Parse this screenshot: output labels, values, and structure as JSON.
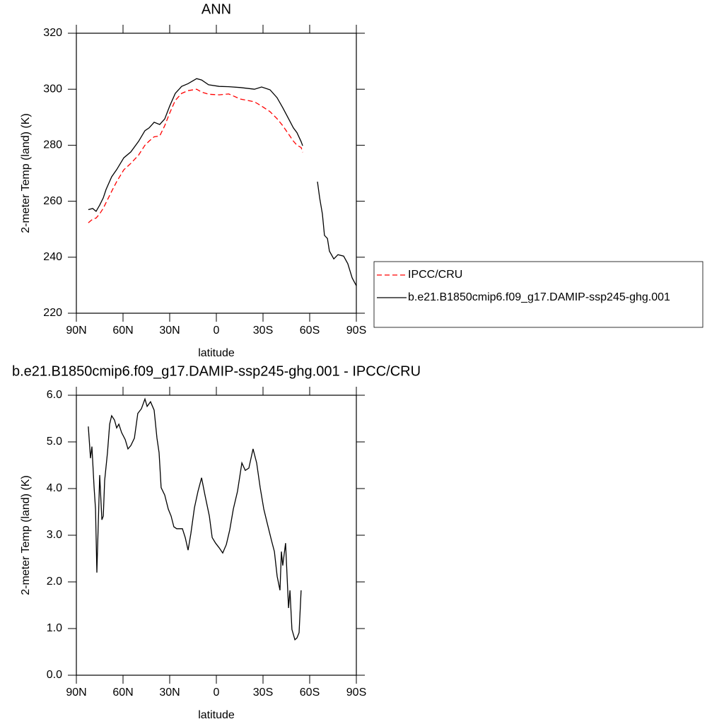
{
  "chart_data": [
    {
      "type": "line",
      "title": "ANN",
      "xlabel": "latitude",
      "ylabel": "2-meter Temp (land) (K)",
      "x": [
        82.3,
        79.5,
        77.3,
        75.0,
        72.7,
        70.9,
        67.3,
        64.1,
        59.5,
        55.0,
        50.0,
        45.9,
        43.2,
        40.0,
        36.4,
        33.2,
        30.0,
        26.4,
        22.3,
        18.2,
        12.7,
        9.5,
        5.0,
        -1.8,
        -8.0,
        -15.5,
        -24.5,
        -29.1,
        -34.5,
        -39.0,
        -42.7,
        -46.4,
        -49.5,
        -51.8,
        -54.5,
        -55.5,
        -60.0,
        -65.0,
        -66.4,
        -68.2,
        -69.5,
        -71.4,
        -72.7,
        -75.5,
        -78.2,
        -81.8,
        -84.5,
        -87.3,
        -90.0
      ],
      "series": [
        {
          "name": "IPCC/CRU",
          "color": "#ff0000",
          "line_style": "dashed",
          "values": [
            252.3,
            253.6,
            254.0,
            255.5,
            257.5,
            259.5,
            263.5,
            267.0,
            271.2,
            273.5,
            276.5,
            280.0,
            281.5,
            283.0,
            283.3,
            287.0,
            291.5,
            296.0,
            298.5,
            299.5,
            300.0,
            299.0,
            298.2,
            298.0,
            298.3,
            296.5,
            295.5,
            294.0,
            292.0,
            289.5,
            287.0,
            284.0,
            281.5,
            280.0,
            279.2,
            277.5,
            null,
            null,
            null,
            null,
            null,
            null,
            null,
            null,
            null,
            null,
            null,
            null,
            null
          ]
        },
        {
          "name": "b.e21.B1850cmip6.f09_g17.DAMIP-ssp245-ghg.001",
          "color": "#000000",
          "line_style": "solid",
          "values": [
            257.0,
            257.4,
            256.4,
            258.6,
            261.2,
            264.2,
            268.7,
            271.3,
            275.5,
            277.6,
            281.4,
            285.2,
            286.2,
            288.2,
            287.4,
            289.4,
            294.0,
            298.5,
            301.0,
            302.0,
            303.8,
            303.3,
            301.6,
            301.0,
            300.9,
            300.6,
            300.0,
            300.8,
            299.8,
            297.0,
            293.4,
            289.5,
            286.2,
            284.5,
            281.3,
            279.8,
            null,
            267.0,
            261.2,
            255.4,
            247.8,
            246.7,
            242.2,
            239.4,
            240.9,
            240.4,
            237.7,
            232.6,
            229.8
          ]
        }
      ],
      "xlim": [
        90,
        -90
      ],
      "xticks": [
        {
          "value": 90,
          "label": "90N"
        },
        {
          "value": 60,
          "label": "60N"
        },
        {
          "value": 30,
          "label": "30N"
        },
        0,
        {
          "value": -30,
          "label": "30S"
        },
        {
          "value": -60,
          "label": "60S"
        },
        {
          "value": -90,
          "label": "90S"
        }
      ],
      "ylim": [
        220,
        320
      ],
      "yticks": [
        220,
        240,
        260,
        280,
        300,
        320
      ],
      "legend": "right"
    },
    {
      "type": "line",
      "title": "b.e21.B1850cmip6.f09_g17.DAMIP-ssp245-ghg.001 - IPCC/CRU",
      "xlabel": "latitude",
      "ylabel": "2-meter Temp (land) (K)",
      "x": [
        82.3,
        80.9,
        80.0,
        78.6,
        77.7,
        76.8,
        75.0,
        73.6,
        72.7,
        71.8,
        70.0,
        68.6,
        67.3,
        65.5,
        64.1,
        62.7,
        60.9,
        58.6,
        56.8,
        55.0,
        52.7,
        50.5,
        48.2,
        45.9,
        44.5,
        42.3,
        40.0,
        38.2,
        36.8,
        35.5,
        33.2,
        30.9,
        29.1,
        27.3,
        25.5,
        21.8,
        20.0,
        18.2,
        16.4,
        14.1,
        11.8,
        9.5,
        7.3,
        4.5,
        2.7,
        0.5,
        -1.8,
        -4.1,
        -6.4,
        -8.6,
        -10.9,
        -13.6,
        -16.4,
        -18.6,
        -20.9,
        -23.6,
        -25.9,
        -28.2,
        -30.5,
        -32.7,
        -35.5,
        -37.3,
        -39.1,
        -40.9,
        -41.8,
        -42.7,
        -44.5,
        -46.4,
        -47.3,
        -48.6,
        -50.5,
        -51.8,
        -53.2,
        -54.5
      ],
      "values": [
        5.33,
        4.65,
        4.9,
        4.02,
        3.56,
        2.2,
        4.29,
        3.33,
        3.41,
        4.17,
        4.77,
        5.38,
        5.56,
        5.47,
        5.3,
        5.38,
        5.2,
        5.05,
        4.85,
        4.92,
        5.08,
        5.61,
        5.71,
        5.92,
        5.76,
        5.86,
        5.68,
        5.08,
        4.77,
        4.02,
        3.86,
        3.56,
        3.41,
        3.18,
        3.14,
        3.14,
        2.95,
        2.68,
        3.03,
        3.59,
        3.94,
        4.23,
        3.86,
        3.41,
        2.95,
        2.83,
        2.73,
        2.62,
        2.8,
        3.11,
        3.56,
        3.94,
        4.55,
        4.39,
        4.44,
        4.85,
        4.55,
        4.02,
        3.56,
        3.26,
        2.88,
        2.65,
        2.12,
        1.82,
        2.65,
        2.35,
        2.83,
        1.44,
        1.82,
        0.98,
        0.76,
        0.8,
        0.91,
        1.82
      ],
      "color": "#000000",
      "xlim": [
        90,
        -90
      ],
      "xticks": [
        {
          "value": 90,
          "label": "90N"
        },
        {
          "value": 60,
          "label": "60N"
        },
        {
          "value": 30,
          "label": "30N"
        },
        0,
        {
          "value": -30,
          "label": "30S"
        },
        {
          "value": -60,
          "label": "60S"
        },
        {
          "value": -90,
          "label": "90S"
        }
      ],
      "ylim": [
        0,
        6
      ],
      "yticks": [
        {
          "value": 0,
          "label": "0.0"
        },
        {
          "value": 1,
          "label": "1.0"
        },
        {
          "value": 2,
          "label": "2.0"
        },
        {
          "value": 3,
          "label": "3.0"
        },
        {
          "value": 4,
          "label": "4.0"
        },
        {
          "value": 5,
          "label": "5.0"
        },
        {
          "value": 6,
          "label": "6.0"
        }
      ]
    }
  ]
}
